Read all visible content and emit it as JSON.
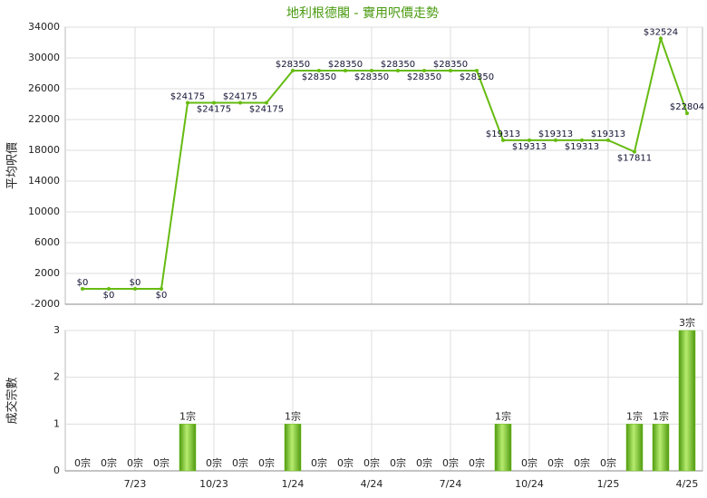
{
  "title": "地利根德閣 - 實用呎價走勢",
  "chart_data": [
    {
      "type": "line",
      "ylabel": "平均呎價",
      "color": "#66bb11",
      "grid": true,
      "categories": [
        null,
        null,
        "7/23",
        null,
        null,
        "10/23",
        null,
        null,
        "1/24",
        null,
        null,
        "4/24",
        null,
        null,
        "7/24",
        null,
        null,
        "10/24",
        null,
        null,
        "1/25",
        null,
        null,
        "4/25"
      ],
      "values": [
        0,
        0,
        0,
        0,
        24175,
        24175,
        24175,
        24175,
        28350,
        28350,
        28350,
        28350,
        28350,
        28350,
        28350,
        28350,
        19313,
        19313,
        19313,
        19313,
        19313,
        17811,
        32524,
        22804
      ],
      "value_labels": [
        "$0",
        "$0",
        "$0",
        "$0",
        "$24175",
        "$24175",
        "$24175",
        "$24175",
        "$28350",
        "$28350",
        "$28350",
        "$28350",
        "$28350",
        "$28350",
        "$28350",
        "$28350",
        "$19313",
        "$19313",
        "$19313",
        "$19313",
        "$19313",
        "$17811",
        "$32524",
        "$22804"
      ],
      "ylim": [
        -2000,
        34000
      ],
      "yticks": [
        -2000,
        2000,
        6000,
        10000,
        14000,
        18000,
        22000,
        26000,
        30000,
        34000
      ]
    },
    {
      "type": "bar",
      "ylabel": "成交宗數",
      "color": "#66bb11",
      "grid": true,
      "categories": [
        null,
        null,
        "7/23",
        null,
        null,
        "10/23",
        null,
        null,
        "1/24",
        null,
        null,
        "4/24",
        null,
        null,
        "7/24",
        null,
        null,
        "10/24",
        null,
        null,
        "1/25",
        null,
        null,
        "4/25"
      ],
      "values": [
        0,
        0,
        0,
        0,
        1,
        0,
        0,
        0,
        1,
        0,
        0,
        0,
        0,
        0,
        0,
        0,
        1,
        0,
        0,
        0,
        0,
        1,
        1,
        3
      ],
      "value_labels": [
        "0宗",
        "0宗",
        "0宗",
        "0宗",
        "1宗",
        "0宗",
        "0宗",
        "0宗",
        "1宗",
        "0宗",
        "0宗",
        "0宗",
        "0宗",
        "0宗",
        "0宗",
        "0宗",
        "1宗",
        "0宗",
        "0宗",
        "0宗",
        "0宗",
        "1宗",
        "1宗",
        "3宗"
      ],
      "ylim": [
        0,
        3
      ],
      "yticks": [
        0,
        1,
        2,
        3
      ]
    }
  ]
}
